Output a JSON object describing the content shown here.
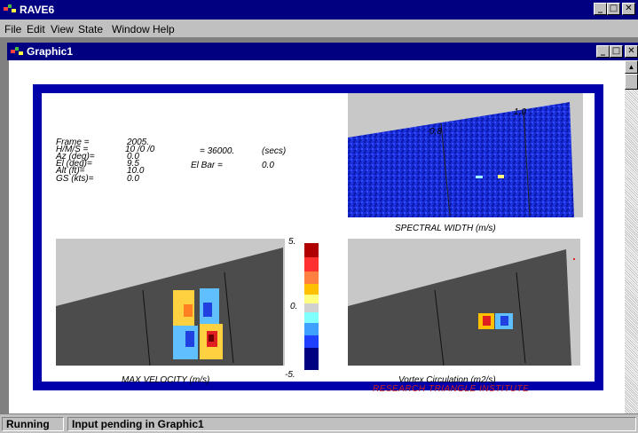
{
  "app": {
    "title": "RAVE6",
    "accent_color": "#000080",
    "icon": "rave-app-icon"
  },
  "window_buttons": {
    "minimize": "_",
    "maximize": "□",
    "close": "✕"
  },
  "menu": [
    "File",
    "Edit",
    "View",
    "State",
    "Window",
    "Help"
  ],
  "child_window": {
    "title": "Graphic1"
  },
  "graphic": {
    "info_labels": [
      "Frame  =",
      "H/M/S =",
      "Az (deg)=",
      "El (deg)=",
      "Alt (ft)=",
      "GS (kts)="
    ],
    "info_values": [
      "2005.",
      "10  /0  /0",
      "0.0",
      "9.5",
      "10.0",
      "0.0"
    ],
    "time_eq": "= 36000.",
    "time_unit": "(secs)",
    "el_bar_label": "El Bar =",
    "el_bar_value": "0.0",
    "spectral_tick_1": "0.8",
    "spectral_tick_2": "1.0",
    "panels": {
      "spectral_width": "SPECTRAL WIDTH (m/s)",
      "max_velocity": "MAX VELOCITY (m/s)",
      "vortex": "Vortex Circulation (m2/s)"
    },
    "colorbar": {
      "top": "5.",
      "mid": "0.",
      "bottom": "-5."
    },
    "watermark": "RESEARCH TRIANGLE INSTITUTE"
  },
  "status": {
    "state": "Running",
    "message": "Input pending in Graphic1"
  }
}
